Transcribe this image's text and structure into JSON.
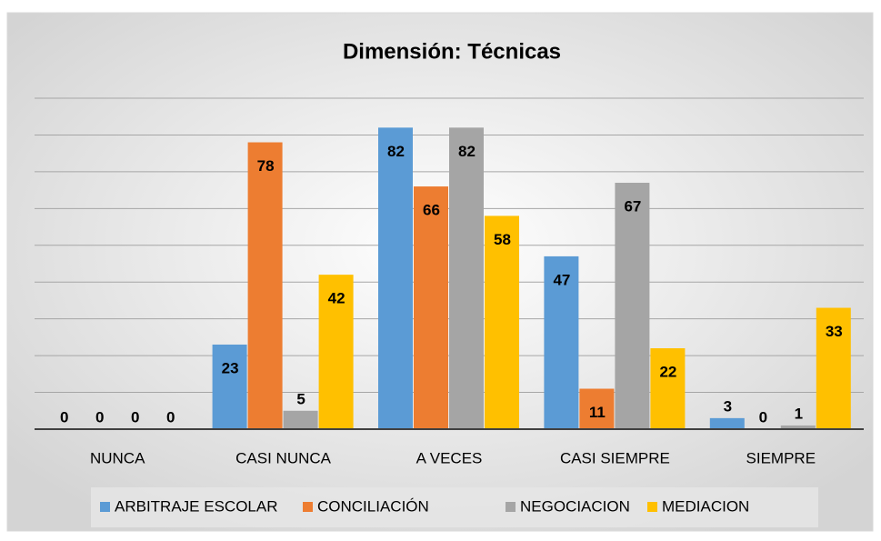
{
  "chart_data": {
    "type": "bar",
    "title": "Dimensión:  Técnicas",
    "categories": [
      "NUNCA",
      "CASI NUNCA",
      "A VECES",
      "CASI SIEMPRE",
      "SIEMPRE"
    ],
    "series": [
      {
        "name": "ARBITRAJE ESCOLAR",
        "color": "#5b9bd5",
        "values": [
          0,
          23,
          82,
          47,
          3
        ]
      },
      {
        "name": "CONCILIACIÓN",
        "color": "#ed7d31",
        "values": [
          0,
          78,
          66,
          11,
          0
        ]
      },
      {
        "name": "NEGOCIACION",
        "color": "#a5a5a5",
        "values": [
          0,
          5,
          82,
          67,
          1
        ]
      },
      {
        "name": "MEDIACION",
        "color": "#ffc000",
        "values": [
          0,
          42,
          58,
          22,
          33
        ]
      }
    ],
    "ylim": [
      0,
      90
    ],
    "yticks": [
      0,
      10,
      20,
      30,
      40,
      50,
      60,
      70,
      80,
      90
    ],
    "grid": true,
    "legend": "bottom"
  }
}
